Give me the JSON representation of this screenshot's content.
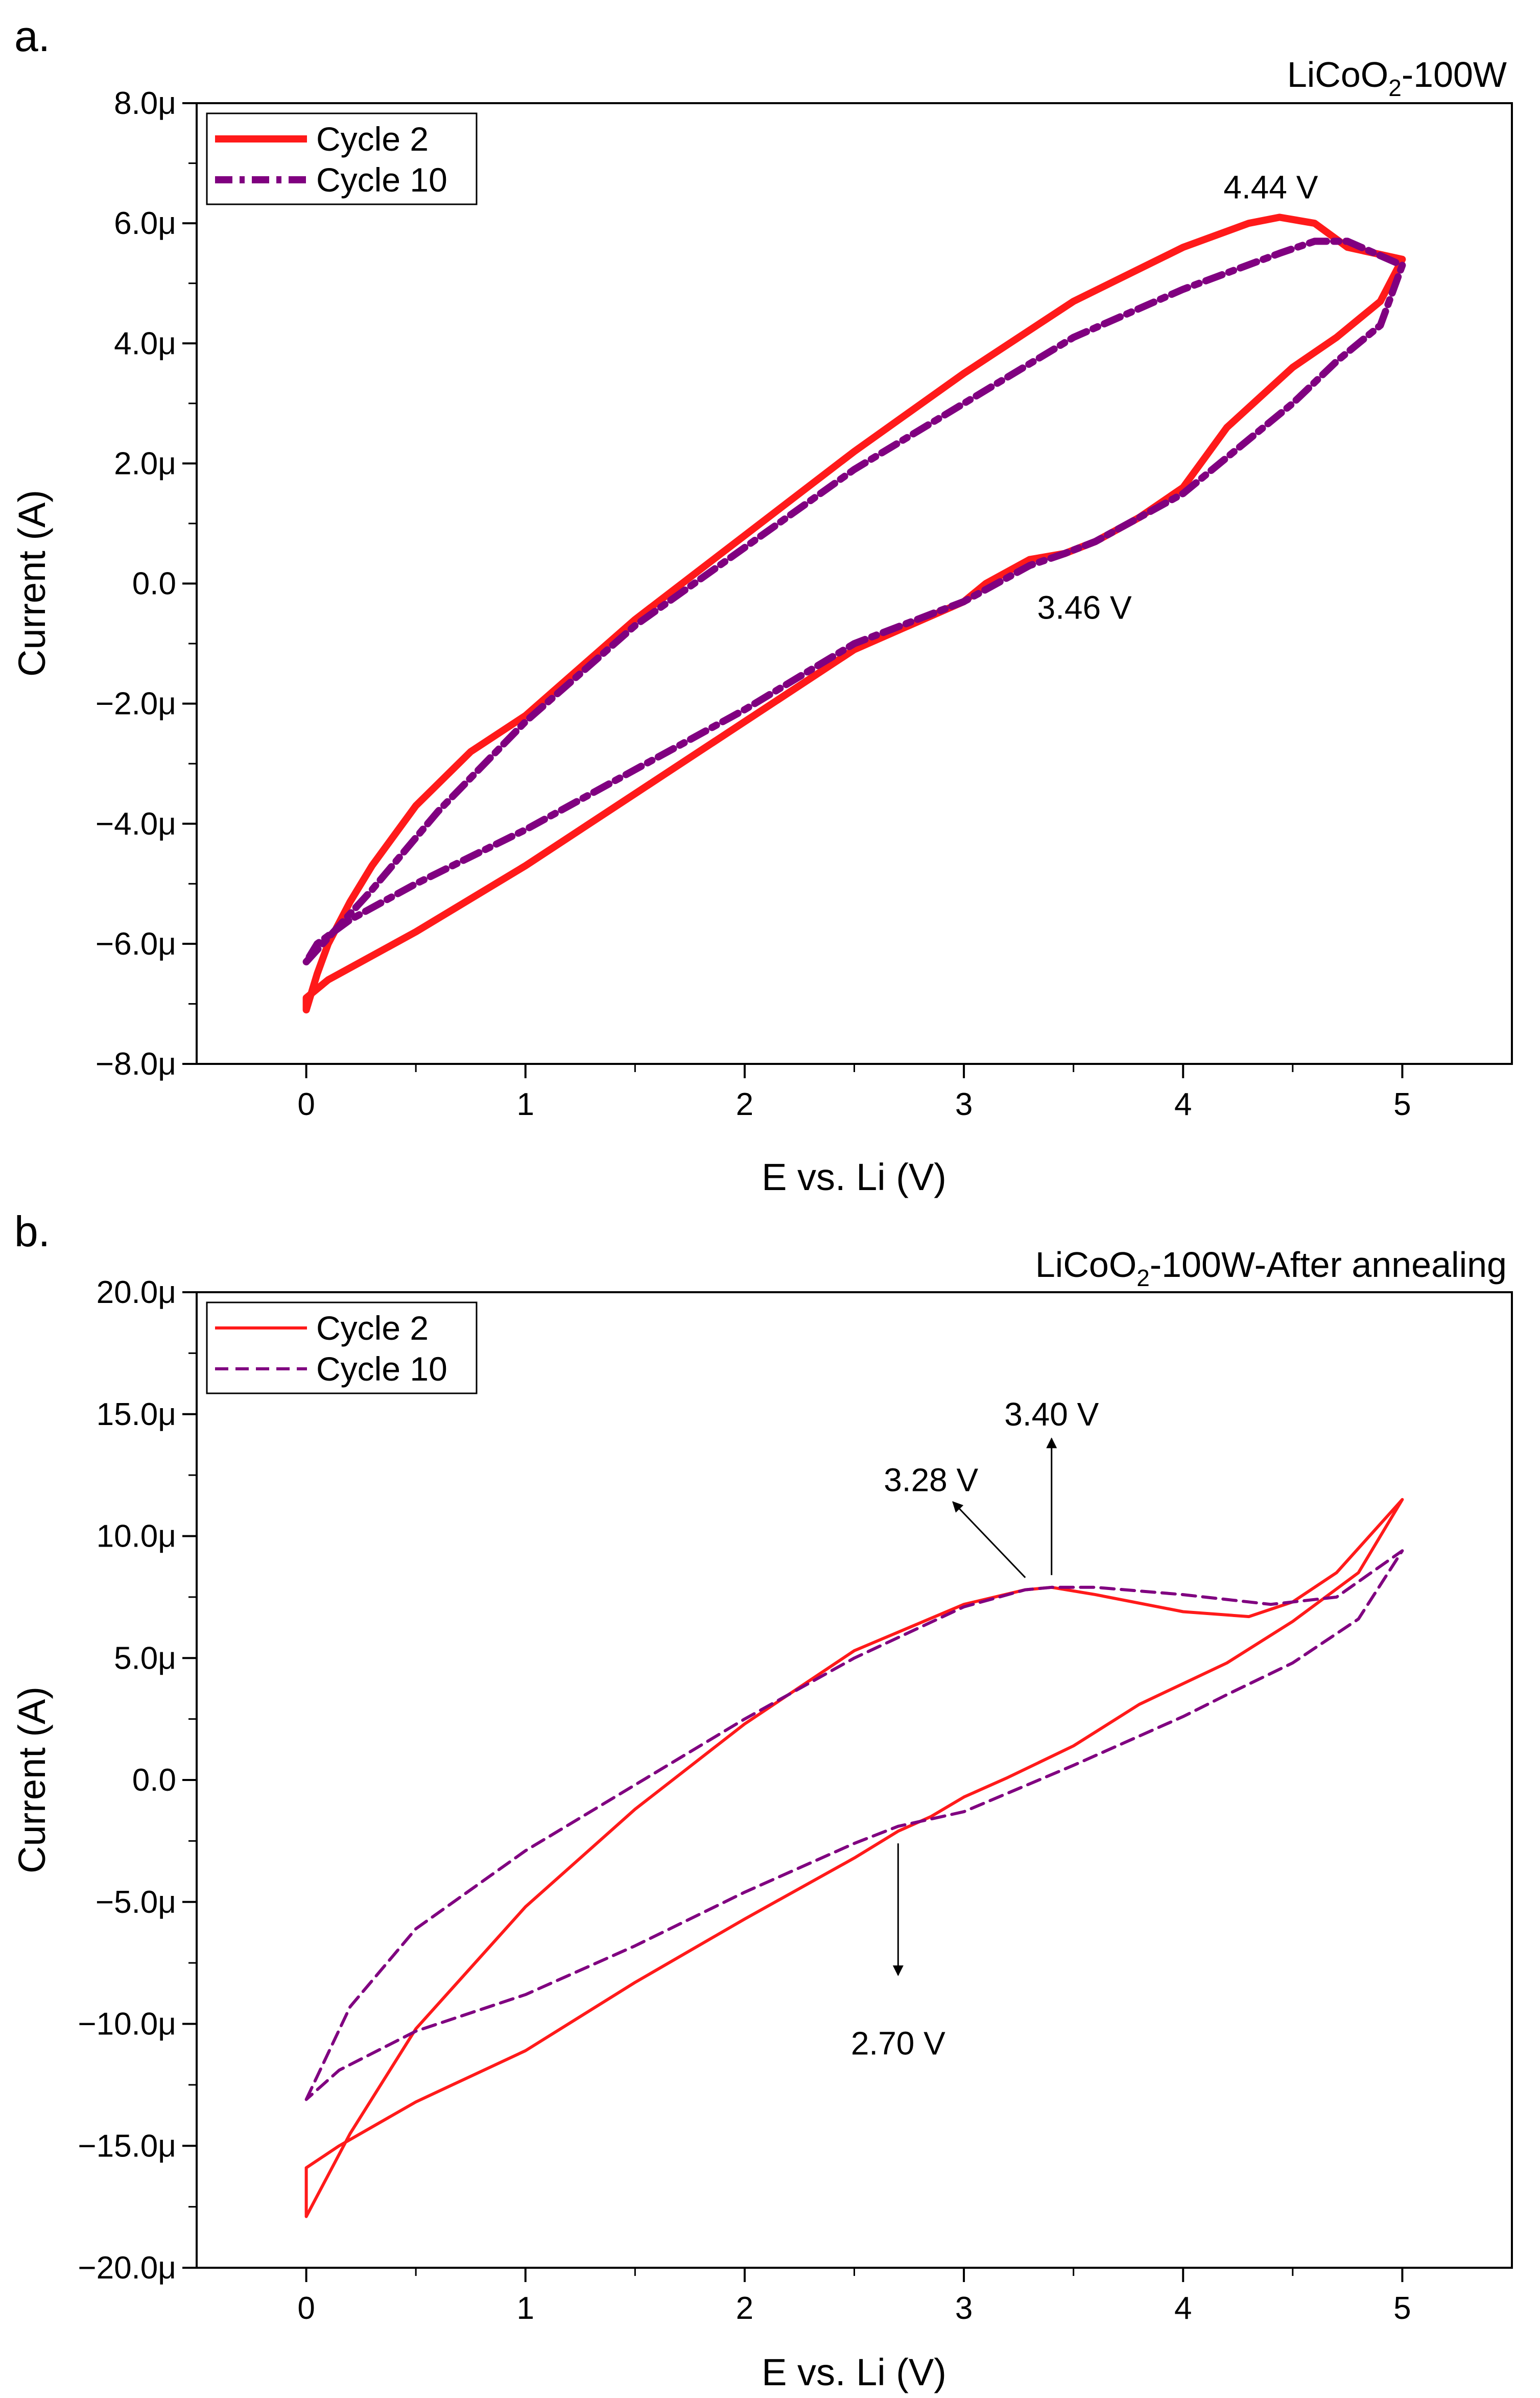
{
  "figure": {
    "panels": [
      {
        "letter": "a.",
        "title_main": "LiCoO",
        "title_sub": "2",
        "title_rest": "-100W"
      },
      {
        "letter": "b.",
        "title_main": "LiCoO",
        "title_sub": "2",
        "title_rest": "-100W-After annealing"
      }
    ]
  },
  "chart_data": [
    {
      "type": "line",
      "title": "LiCoO2-100W",
      "xlabel": "E vs. Li (V)",
      "ylabel": "Current (A)",
      "xlim": [
        -0.5,
        5.5
      ],
      "ylim": [
        -8.0,
        8.0
      ],
      "xticks": [
        0,
        1,
        2,
        3,
        4,
        5
      ],
      "yticks": [
        -8,
        -6,
        -4,
        -2,
        0,
        2,
        4,
        6,
        8
      ],
      "ytick_labels": [
        "−8.0μ",
        "−6.0μ",
        "−4.0μ",
        "−2.0μ",
        "0.0",
        "2.0μ",
        "4.0μ",
        "6.0μ",
        "8.0μ"
      ],
      "y_unit": "μA",
      "legend_position": "top-left",
      "series": [
        {
          "name": "Cycle 2",
          "color": "#ff1a1a",
          "style": "solid",
          "width": "thick",
          "x": [
            0.0,
            0.05,
            0.1,
            0.2,
            0.3,
            0.5,
            0.75,
            1.0,
            1.5,
            2.0,
            2.5,
            3.0,
            3.5,
            4.0,
            4.3,
            4.44,
            4.6,
            4.75,
            5.0,
            4.9,
            4.7,
            4.5,
            4.2,
            4.0,
            3.8,
            3.6,
            3.46,
            3.3,
            3.1,
            3.0,
            2.5,
            2.0,
            1.5,
            1.0,
            0.5,
            0.1,
            0.0,
            0.0
          ],
          "y": [
            -7.1,
            -6.5,
            -6.0,
            -5.3,
            -4.7,
            -3.7,
            -2.8,
            -2.2,
            -0.6,
            0.8,
            2.2,
            3.5,
            4.7,
            5.6,
            6.0,
            6.1,
            6.0,
            5.6,
            5.4,
            4.7,
            4.1,
            3.6,
            2.6,
            1.6,
            1.1,
            0.7,
            0.5,
            0.4,
            0.0,
            -0.3,
            -1.1,
            -2.3,
            -3.5,
            -4.7,
            -5.8,
            -6.6,
            -6.9,
            -7.1
          ]
        },
        {
          "name": "Cycle 10",
          "color": "#800080",
          "style": "dash-dot",
          "width": "thick",
          "x": [
            0.0,
            0.3,
            0.6,
            1.0,
            1.5,
            2.0,
            2.5,
            3.0,
            3.5,
            4.0,
            4.44,
            4.6,
            4.75,
            5.0,
            4.9,
            4.7,
            4.5,
            4.3,
            4.0,
            3.8,
            3.6,
            3.46,
            3.3,
            3.0,
            2.5,
            2.0,
            1.5,
            1.0,
            0.5,
            0.2,
            0.05,
            0.0
          ],
          "y": [
            -6.3,
            -5.1,
            -3.8,
            -2.3,
            -0.7,
            0.6,
            1.9,
            3.0,
            4.1,
            4.9,
            5.5,
            5.7,
            5.7,
            5.3,
            4.3,
            3.7,
            3.0,
            2.4,
            1.5,
            1.1,
            0.7,
            0.5,
            0.3,
            -0.3,
            -1.0,
            -2.1,
            -3.1,
            -4.1,
            -5.0,
            -5.6,
            -6.0,
            -6.3
          ]
        }
      ],
      "annotations": [
        {
          "text": "4.44 V",
          "x": 4.4,
          "y": 6.6
        },
        {
          "text": "3.46 V",
          "x": 3.55,
          "y": -0.4
        }
      ]
    },
    {
      "type": "line",
      "title": "LiCoO2-100W-After annealing",
      "xlabel": "E vs. Li (V)",
      "ylabel": "Current (A)",
      "xlim": [
        -0.5,
        5.5
      ],
      "ylim": [
        -20.0,
        20.0
      ],
      "xticks": [
        0,
        1,
        2,
        3,
        4,
        5
      ],
      "yticks": [
        -20,
        -15,
        -10,
        -5,
        0,
        5,
        10,
        15,
        20
      ],
      "ytick_labels": [
        "−20.0μ",
        "−15.0μ",
        "−10.0μ",
        "−5.0μ",
        "0.0",
        "5.0μ",
        "10.0μ",
        "15.0μ",
        "20.0μ"
      ],
      "y_unit": "μA",
      "legend_position": "top-left",
      "series": [
        {
          "name": "Cycle 2",
          "color": "#ff1a1a",
          "style": "solid",
          "width": "thin",
          "x": [
            0.0,
            0.2,
            0.5,
            1.0,
            1.5,
            2.0,
            2.5,
            3.0,
            3.28,
            3.4,
            3.6,
            4.0,
            4.3,
            4.5,
            4.7,
            4.85,
            5.0,
            4.8,
            4.5,
            4.2,
            3.8,
            3.5,
            3.2,
            3.0,
            2.85,
            2.7,
            2.5,
            2.0,
            1.5,
            1.0,
            0.5,
            0.15,
            0.0,
            0.0
          ],
          "y": [
            -17.9,
            -14.5,
            -10.2,
            -5.2,
            -1.2,
            2.3,
            5.3,
            7.2,
            7.8,
            7.9,
            7.6,
            6.9,
            6.7,
            7.3,
            8.5,
            10.0,
            11.5,
            8.5,
            6.5,
            4.8,
            3.1,
            1.4,
            0.1,
            -0.7,
            -1.5,
            -2.1,
            -3.2,
            -5.7,
            -8.3,
            -11.1,
            -13.2,
            -15.0,
            -15.9,
            -17.9
          ]
        },
        {
          "name": "Cycle 10",
          "color": "#800080",
          "style": "dashed",
          "width": "thin",
          "x": [
            0.0,
            0.2,
            0.5,
            1.0,
            1.5,
            2.0,
            2.5,
            3.0,
            3.28,
            3.4,
            3.6,
            4.0,
            4.4,
            4.7,
            5.0,
            4.8,
            4.5,
            4.2,
            4.0,
            3.5,
            3.0,
            2.7,
            2.5,
            2.0,
            1.5,
            1.0,
            0.5,
            0.15,
            0.0
          ],
          "y": [
            -13.1,
            -9.3,
            -6.1,
            -2.9,
            -0.2,
            2.5,
            5.0,
            7.1,
            7.8,
            7.9,
            7.9,
            7.6,
            7.2,
            7.5,
            9.4,
            6.6,
            4.8,
            3.5,
            2.6,
            0.6,
            -1.3,
            -1.9,
            -2.6,
            -4.6,
            -6.8,
            -8.8,
            -10.3,
            -11.9,
            -13.1
          ]
        }
      ],
      "annotations": [
        {
          "text": "3.40 V",
          "x": 3.4,
          "y": 15.0,
          "arrow_from": [
            3.4,
            8.4
          ],
          "arrow_to": [
            3.4,
            14.0
          ]
        },
        {
          "text": "3.28 V",
          "x": 2.85,
          "y": 12.3,
          "arrow_from": [
            3.28,
            8.3
          ],
          "arrow_to": [
            2.95,
            11.4
          ]
        },
        {
          "text": "2.70 V",
          "x": 2.7,
          "y": -10.8,
          "arrow_from": [
            2.7,
            -2.6
          ],
          "arrow_to": [
            2.7,
            -8.0
          ]
        }
      ]
    }
  ]
}
